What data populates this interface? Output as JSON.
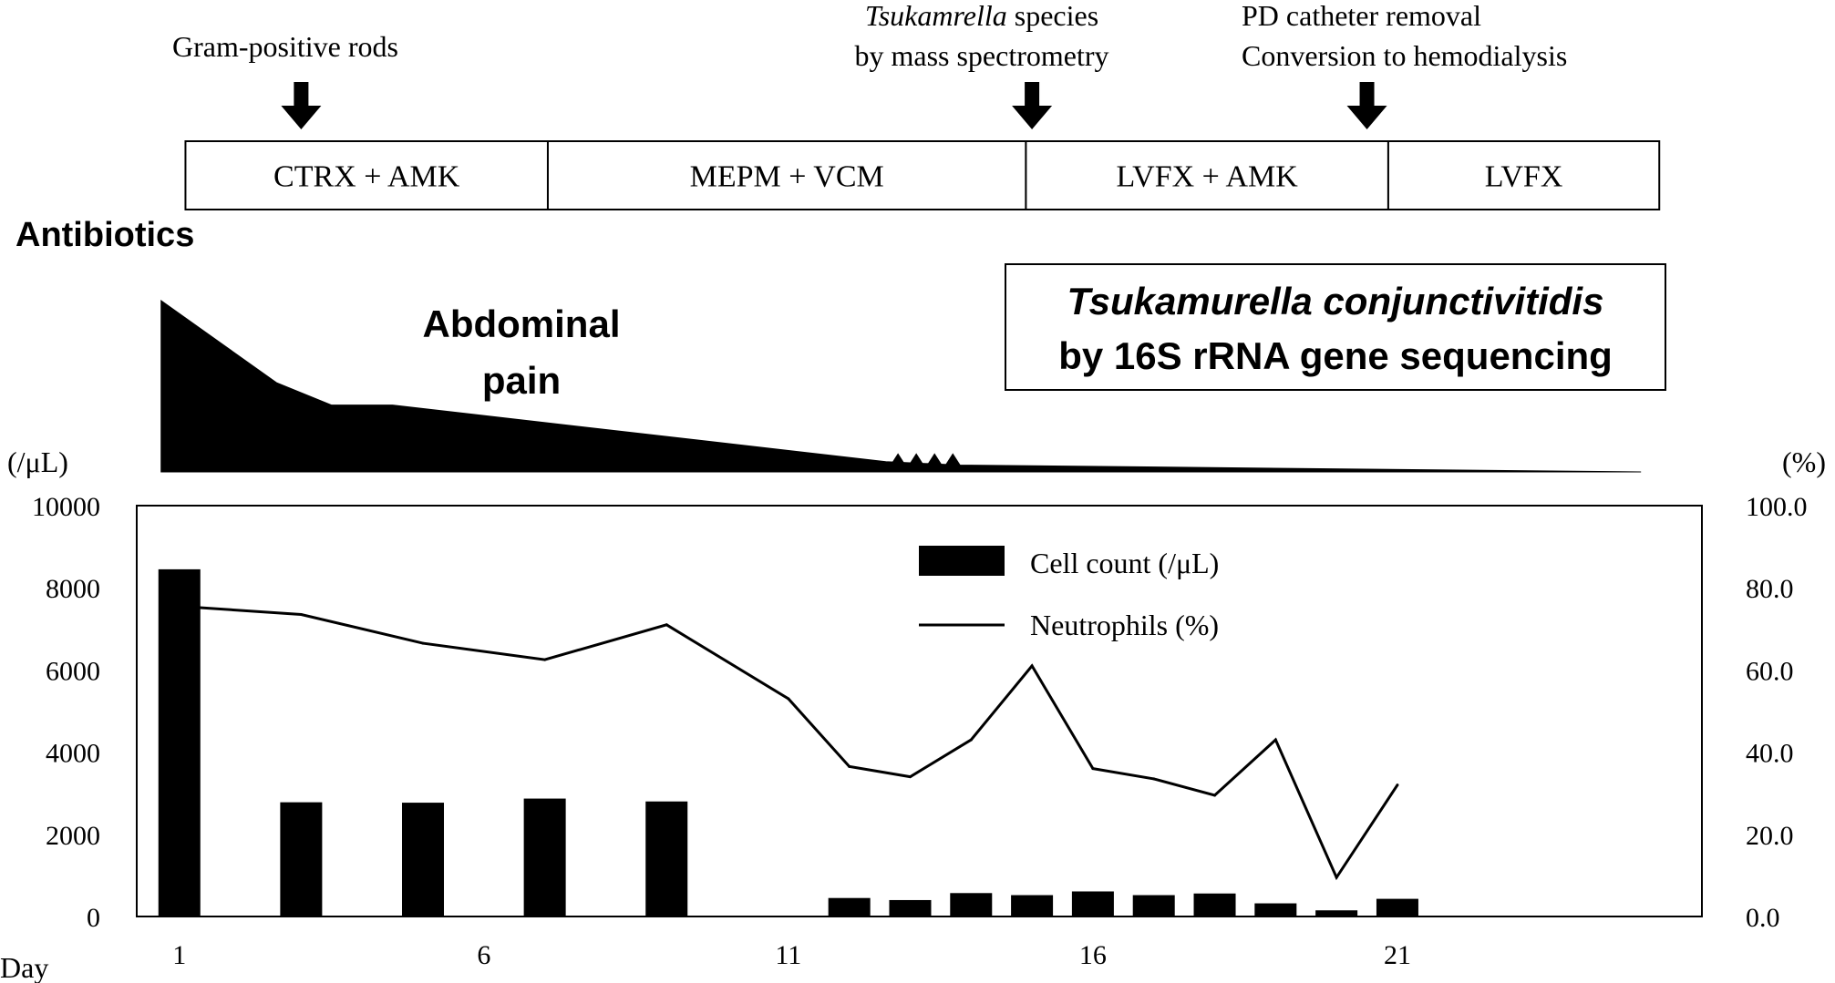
{
  "chart_data": {
    "type": "bar+line",
    "title": "",
    "antibiotics_label": "Antibiotics",
    "events": [
      {
        "id": "gram",
        "lines": [
          "Gram-positive rods"
        ],
        "day": 3.0
      },
      {
        "id": "ms",
        "lines": [
          "Tsukamrella species",
          "by mass spectrometry"
        ],
        "italic_word": "Tsukamrella",
        "day": 15.0
      },
      {
        "id": "pd",
        "lines": [
          "PD catheter removal",
          "Conversion to hemodialysis"
        ],
        "day": 20.5
      }
    ],
    "antibiotic_regimens": [
      {
        "label": "CTRX + AMK",
        "start_day": 1.1,
        "end_day": 7.05
      },
      {
        "label": "MEPM + VCM",
        "start_day": 7.05,
        "end_day": 14.9
      },
      {
        "label": "LVFX + AMK",
        "start_day": 14.9,
        "end_day": 20.85
      },
      {
        "label": "LVFX",
        "start_day": 20.85,
        "end_day": 25.3
      }
    ],
    "abdominal_pain": {
      "label_line1": "Abdominal",
      "label_line2": "pain",
      "days": [
        0.7,
        2.6,
        3.5,
        4.5,
        12.6,
        13.8,
        25.0
      ],
      "intensity": [
        1.0,
        0.52,
        0.39,
        0.39,
        0.06,
        0.04,
        0.0
      ],
      "spike_days": [
        12.8,
        13.1,
        13.4,
        13.7
      ],
      "spike_height": 0.11
    },
    "identification_box": {
      "line1": "Tsukamurella conjunctivitidis",
      "line2": "by 16S rRNA gene sequencing"
    },
    "left_unit": "(/μL)",
    "right_unit": "(%)",
    "x_axis_label": "Day",
    "x_ticks": [
      1,
      6,
      11,
      16,
      21
    ],
    "x_range": [
      0.3,
      26.0
    ],
    "y_left": {
      "min": 0,
      "max": 10000,
      "ticks": [
        0,
        2000,
        4000,
        6000,
        8000,
        10000
      ]
    },
    "y_right": {
      "min": 0,
      "max": 100,
      "ticks": [
        "0.0",
        "20.0",
        "40.0",
        "60.0",
        "80.0",
        "100.0"
      ]
    },
    "legend": {
      "position": "top-center-right",
      "cell_label": "Cell count (/μL)",
      "neut_label": "Neutrophils (%)"
    },
    "series": [
      {
        "name": "Cell count (/μL)",
        "kind": "bar",
        "axis": "left",
        "x": [
          1,
          3,
          5,
          7,
          9,
          12,
          13,
          14,
          15,
          16,
          17,
          18,
          19,
          20,
          21
        ],
        "values": [
          8450,
          2780,
          2770,
          2870,
          2800,
          450,
          400,
          570,
          520,
          610,
          520,
          560,
          320,
          150,
          430
        ]
      },
      {
        "name": "Neutrophils (%)",
        "kind": "line",
        "axis": "right",
        "x": [
          1,
          3,
          5,
          7,
          9,
          11,
          12,
          13,
          14,
          15,
          16,
          17,
          18,
          19,
          20,
          21
        ],
        "values": [
          75.5,
          73.5,
          66.5,
          62.5,
          71.0,
          53.0,
          36.5,
          34.0,
          43.0,
          61.0,
          36.0,
          33.5,
          29.5,
          43.0,
          9.5,
          32.0
        ]
      }
    ]
  }
}
